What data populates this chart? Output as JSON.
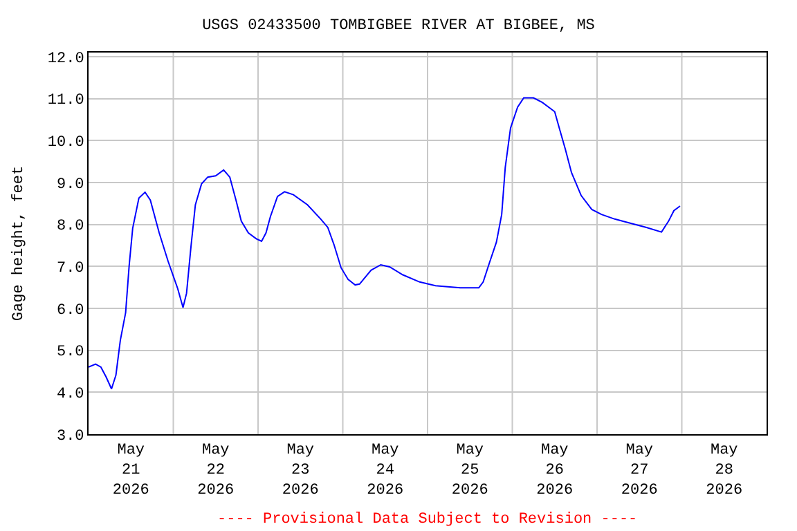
{
  "chart_data": {
    "type": "line",
    "title": "USGS 02433500 TOMBIGBEE RIVER AT BIGBEE, MS",
    "ylabel": "Gage height, feet",
    "x": [
      "2026-05-21T00:00",
      "2026-05-21T02:00",
      "2026-05-21T03:30",
      "2026-05-21T05:00",
      "2026-05-21T06:30",
      "2026-05-21T07:45",
      "2026-05-21T09:00",
      "2026-05-21T10:30",
      "2026-05-21T11:30",
      "2026-05-21T12:30",
      "2026-05-21T14:15",
      "2026-05-21T16:00",
      "2026-05-21T17:30",
      "2026-05-21T20:00",
      "2026-05-21T22:30",
      "2026-05-22T01:15",
      "2026-05-22T02:45",
      "2026-05-22T03:45",
      "2026-05-22T05:00",
      "2026-05-22T06:15",
      "2026-05-22T08:00",
      "2026-05-22T09:45",
      "2026-05-22T12:00",
      "2026-05-22T14:15",
      "2026-05-22T16:00",
      "2026-05-22T17:45",
      "2026-05-22T19:15",
      "2026-05-22T21:15",
      "2026-05-22T23:30",
      "2026-05-23T01:00",
      "2026-05-23T02:15",
      "2026-05-23T03:30",
      "2026-05-23T05:30",
      "2026-05-23T07:30",
      "2026-05-23T10:00",
      "2026-05-23T14:00",
      "2026-05-23T17:45",
      "2026-05-23T19:45",
      "2026-05-23T21:30",
      "2026-05-23T23:30",
      "2026-05-24T01:30",
      "2026-05-24T03:30",
      "2026-05-24T04:45",
      "2026-05-24T08:00",
      "2026-05-24T10:45",
      "2026-05-24T13:15",
      "2026-05-24T17:00",
      "2026-05-24T21:45",
      "2026-05-25T02:15",
      "2026-05-25T09:15",
      "2026-05-25T14:30",
      "2026-05-25T15:45",
      "2026-05-25T17:30",
      "2026-05-25T19:30",
      "2026-05-25T21:00",
      "2026-05-25T22:00",
      "2026-05-25T23:30",
      "2026-05-26T01:30",
      "2026-05-26T03:15",
      "2026-05-26T06:00",
      "2026-05-26T08:30",
      "2026-05-26T12:00",
      "2026-05-26T13:30",
      "2026-05-26T15:00",
      "2026-05-26T16:45",
      "2026-05-26T19:30",
      "2026-05-26T22:30",
      "2026-05-27T01:15",
      "2026-05-27T05:00",
      "2026-05-27T09:00",
      "2026-05-27T14:00",
      "2026-05-27T18:15",
      "2026-05-27T20:15",
      "2026-05-27T21:45",
      "2026-05-27T23:30"
    ],
    "series": [
      {
        "color": "#0000ff",
        "values": [
          4.6,
          4.67,
          4.6,
          4.36,
          4.08,
          4.41,
          5.24,
          5.9,
          7.02,
          7.91,
          8.63,
          8.77,
          8.58,
          7.8,
          7.13,
          6.47,
          6.02,
          6.36,
          7.47,
          8.47,
          8.97,
          9.13,
          9.16,
          9.3,
          9.13,
          8.58,
          8.08,
          7.8,
          7.66,
          7.6,
          7.8,
          8.19,
          8.67,
          8.78,
          8.71,
          8.47,
          8.13,
          7.93,
          7.52,
          6.97,
          6.69,
          6.56,
          6.58,
          6.91,
          7.04,
          6.99,
          6.8,
          6.63,
          6.54,
          6.49,
          6.49,
          6.63,
          7.08,
          7.58,
          8.24,
          9.36,
          10.3,
          10.8,
          11.02,
          11.02,
          10.91,
          10.69,
          10.24,
          9.8,
          9.24,
          8.69,
          8.36,
          8.24,
          8.13,
          8.04,
          7.93,
          7.82,
          8.08,
          8.33,
          8.44
        ]
      }
    ],
    "xlim": [
      "2026-05-21T00:00",
      "2026-05-29T00:00"
    ],
    "xticks": [
      {
        "value": "2026-05-21T12:00",
        "label": "May\n21\n2026"
      },
      {
        "value": "2026-05-22T00:00",
        "label": null
      },
      {
        "value": "2026-05-22T12:00",
        "label": "May\n22\n2026"
      },
      {
        "value": "2026-05-23T00:00",
        "label": null
      },
      {
        "value": "2026-05-23T12:00",
        "label": "May\n23\n2026"
      },
      {
        "value": "2026-05-24T00:00",
        "label": null
      },
      {
        "value": "2026-05-24T12:00",
        "label": "May\n24\n2026"
      },
      {
        "value": "2026-05-25T00:00",
        "label": null
      },
      {
        "value": "2026-05-25T12:00",
        "label": "May\n25\n2026"
      },
      {
        "value": "2026-05-26T00:00",
        "label": null
      },
      {
        "value": "2026-05-26T12:00",
        "label": "May\n26\n2026"
      },
      {
        "value": "2026-05-27T00:00",
        "label": null
      },
      {
        "value": "2026-05-27T12:00",
        "label": "May\n27\n2026"
      },
      {
        "value": "2026-05-28T00:00",
        "label": null
      },
      {
        "value": "2026-05-28T12:00",
        "label": "May\n28\n2026"
      }
    ],
    "ylim": [
      3,
      12.1
    ],
    "yticks": [
      {
        "value": 3,
        "label": "3.0"
      },
      {
        "value": 4,
        "label": "4.0"
      },
      {
        "value": 5,
        "label": "5.0"
      },
      {
        "value": 6,
        "label": "6.0"
      },
      {
        "value": 7,
        "label": "7.0"
      },
      {
        "value": 8,
        "label": "8.0"
      },
      {
        "value": 9,
        "label": "9.0"
      },
      {
        "value": 10,
        "label": "10.0"
      },
      {
        "value": 11,
        "label": "11.0"
      },
      {
        "value": 12,
        "label": "12.0"
      }
    ],
    "grid": true,
    "line_style": "solid",
    "marker": "none",
    "annotations": [
      "---- Provisional Data Subject to Revision ----"
    ]
  }
}
